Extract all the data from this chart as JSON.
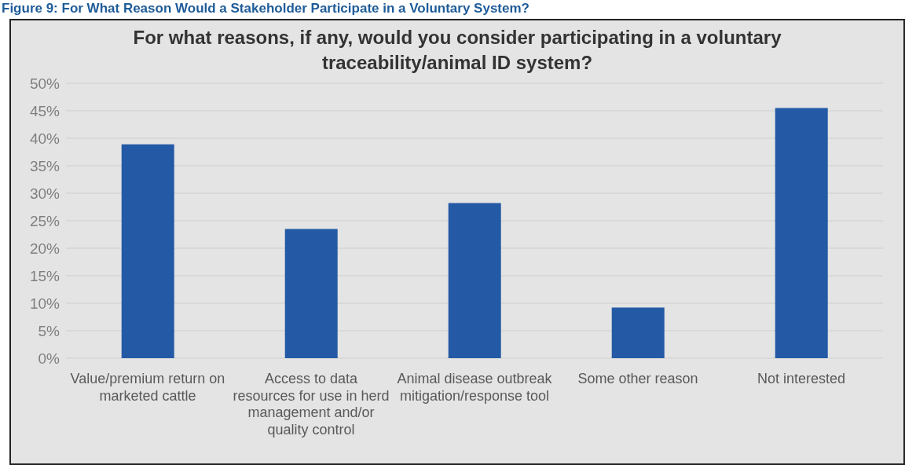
{
  "chart_data": {
    "type": "bar",
    "title": "For what reasons, if any, would you consider participating in a voluntary traceability/animal ID system?",
    "annotations": [
      "Figure 9: For What Reason Would a Stakeholder Participate in a Voluntary System?"
    ],
    "categories": [
      "Value/premium return on marketed cattle",
      "Access to data resources for use in herd management and/or quality control",
      "Animal disease outbreak mitigation/response tool",
      "Some other reason",
      "Not interested"
    ],
    "values": [
      38.9,
      23.5,
      28.2,
      9.2,
      45.5
    ],
    "color": "#245aa5",
    "ylim": [
      0,
      50
    ],
    "yticks": [
      {
        "value": 0,
        "label": "0%"
      },
      {
        "value": 5,
        "label": "5%"
      },
      {
        "value": 10,
        "label": "10%"
      },
      {
        "value": 15,
        "label": "15%"
      },
      {
        "value": 20,
        "label": "20%"
      },
      {
        "value": 25,
        "label": "25%"
      },
      {
        "value": 30,
        "label": "30%"
      },
      {
        "value": 35,
        "label": "35%"
      },
      {
        "value": 40,
        "label": "40%"
      },
      {
        "value": 45,
        "label": "45%"
      },
      {
        "value": 50,
        "label": "50%"
      }
    ],
    "grid": "y"
  }
}
